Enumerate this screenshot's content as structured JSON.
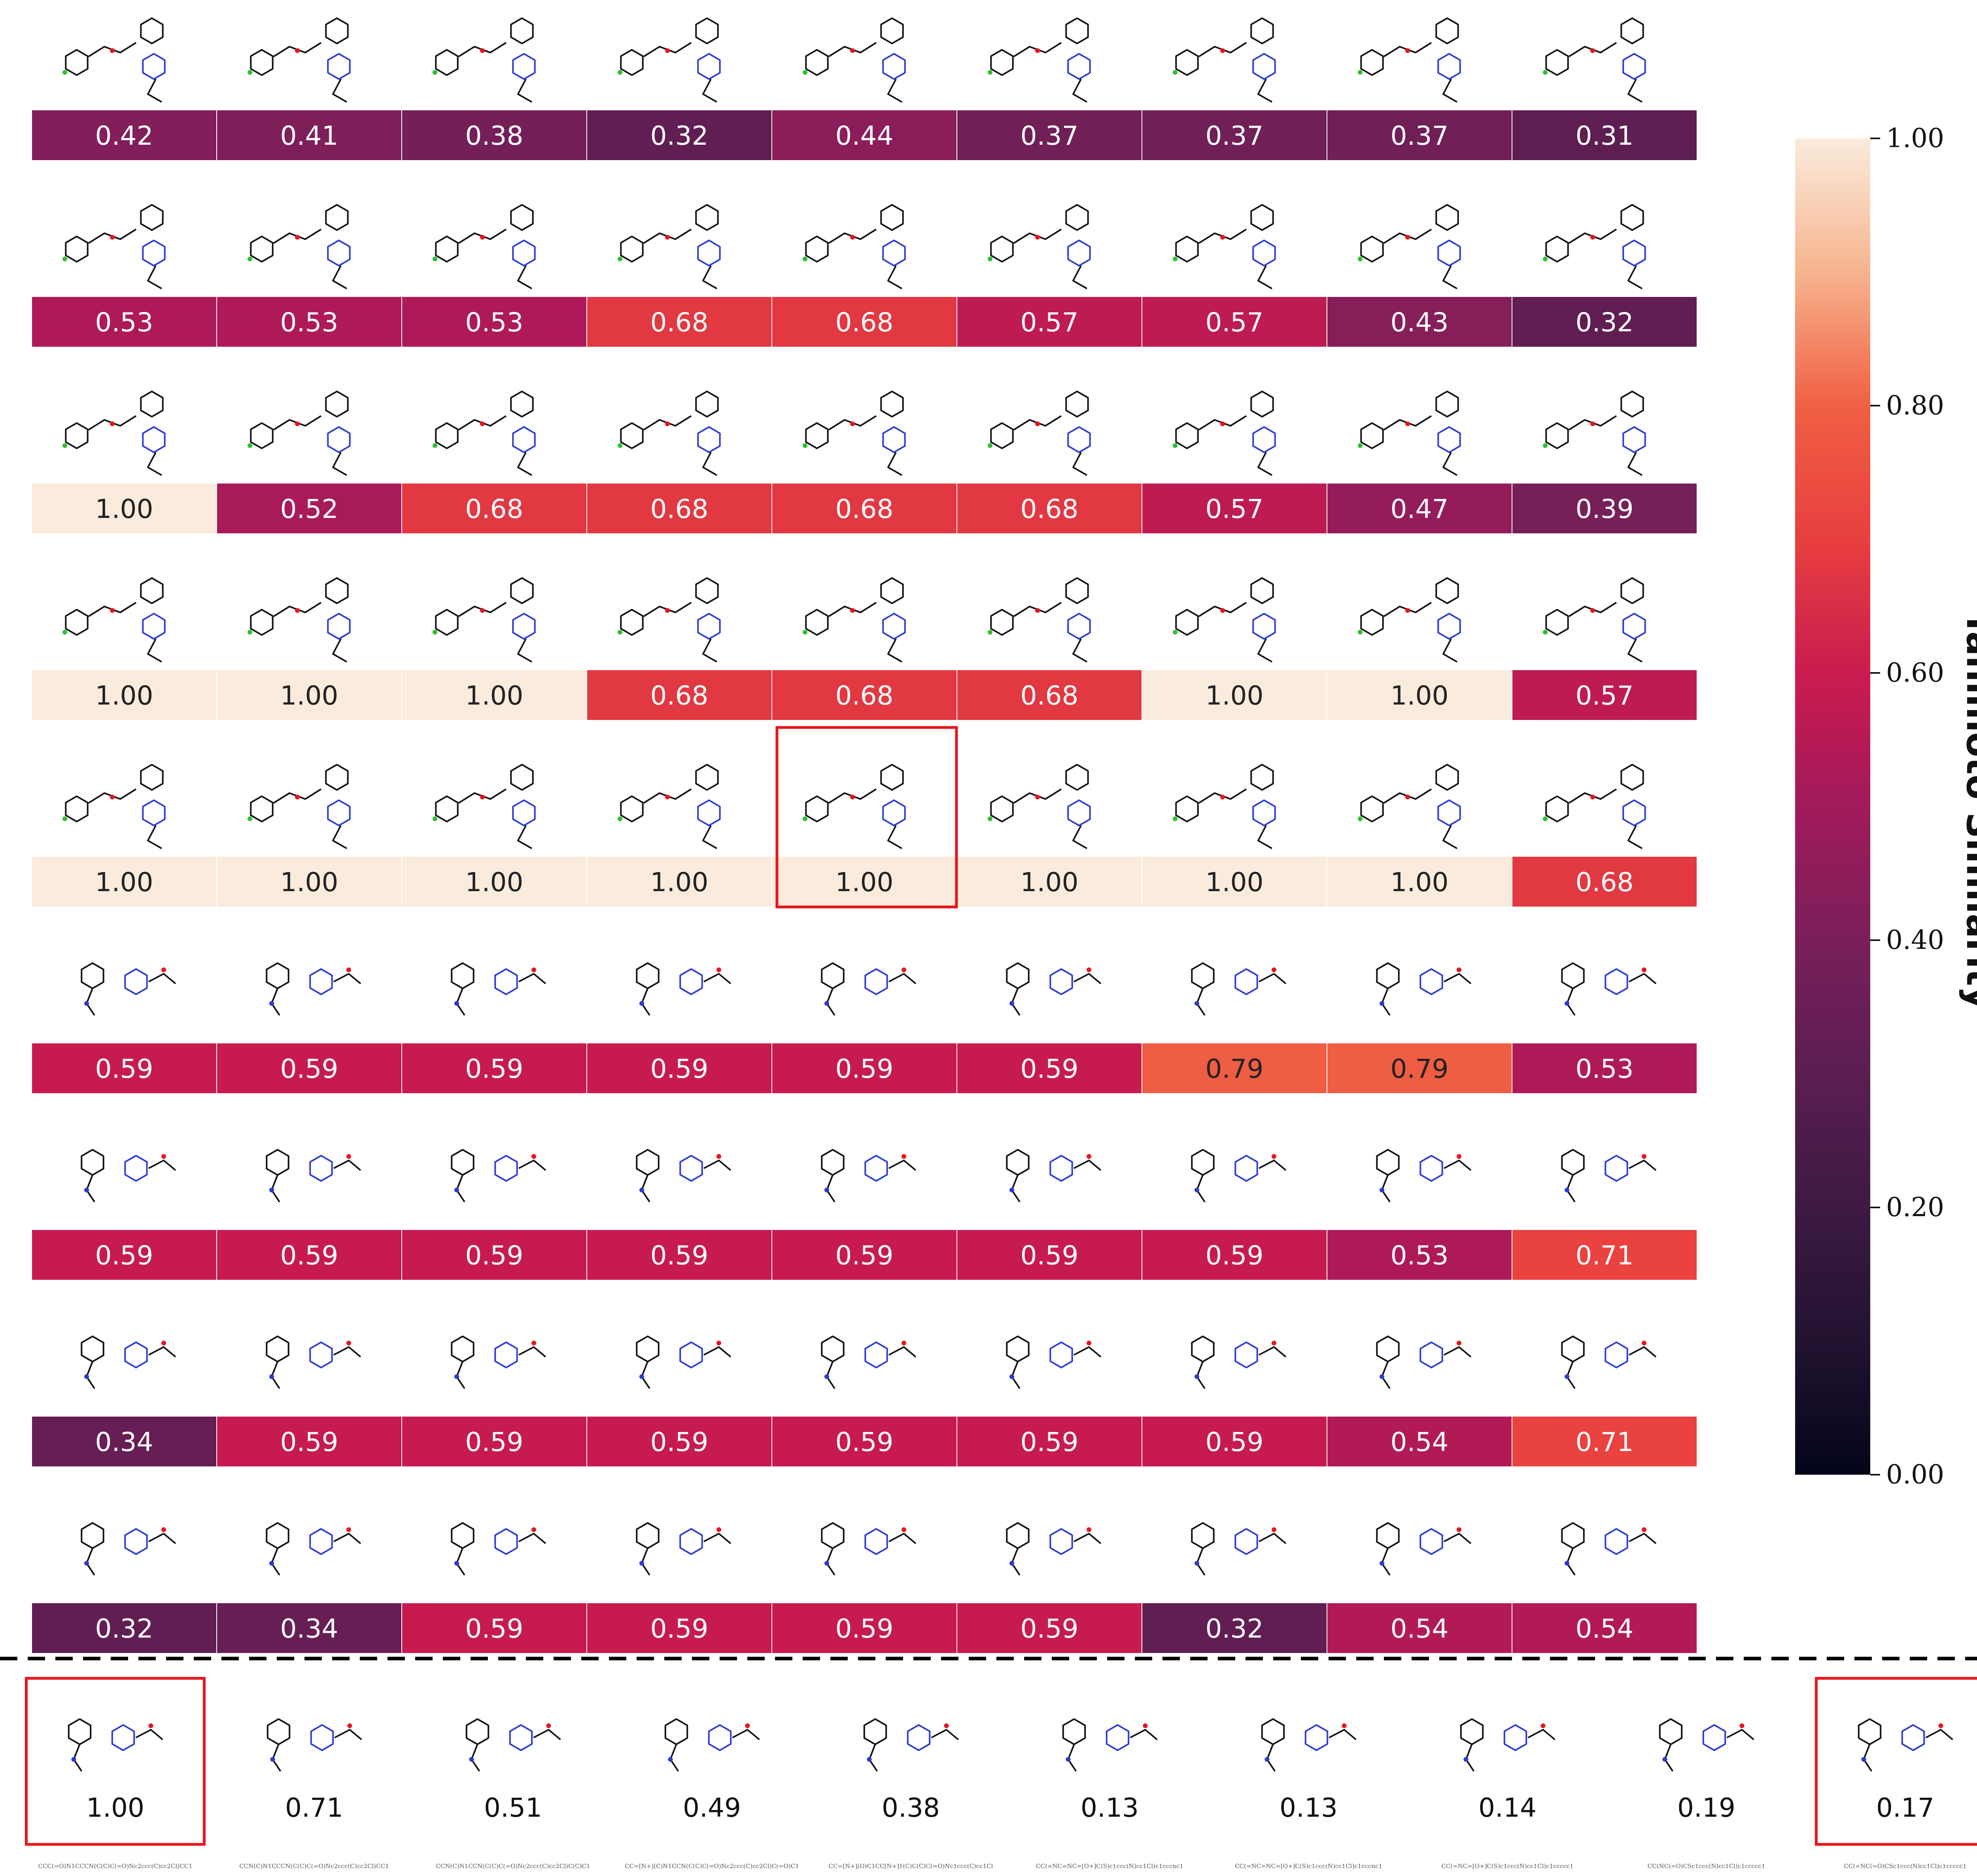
{
  "chart_data": {
    "type": "heatmap",
    "rows": 9,
    "columns": 9,
    "values": [
      [
        0.42,
        0.41,
        0.38,
        0.32,
        0.44,
        0.37,
        0.37,
        0.37,
        0.31
      ],
      [
        0.53,
        0.53,
        0.53,
        0.68,
        0.68,
        0.57,
        0.57,
        0.43,
        0.32
      ],
      [
        1.0,
        0.52,
        0.68,
        0.68,
        0.68,
        0.68,
        0.57,
        0.47,
        0.39
      ],
      [
        1.0,
        1.0,
        1.0,
        0.68,
        0.68,
        0.68,
        1.0,
        1.0,
        0.57
      ],
      [
        1.0,
        1.0,
        1.0,
        1.0,
        1.0,
        1.0,
        1.0,
        1.0,
        0.68
      ],
      [
        0.59,
        0.59,
        0.59,
        0.59,
        0.59,
        0.59,
        0.79,
        0.79,
        0.53
      ],
      [
        0.59,
        0.59,
        0.59,
        0.59,
        0.59,
        0.59,
        0.59,
        0.53,
        0.71
      ],
      [
        0.34,
        0.59,
        0.59,
        0.59,
        0.59,
        0.59,
        0.59,
        0.54,
        0.71
      ],
      [
        0.32,
        0.34,
        0.59,
        0.59,
        0.59,
        0.59,
        0.32,
        0.54,
        0.54
      ]
    ],
    "value_labels": [
      [
        "0.42",
        "0.41",
        "0.38",
        "0.32",
        "0.44",
        "0.37",
        "0.37",
        "0.37",
        "0.31"
      ],
      [
        "0.53",
        "0.53",
        "0.53",
        "0.68",
        "0.68",
        "0.57",
        "0.57",
        "0.43",
        "0.32"
      ],
      [
        "1.00",
        "0.52",
        "0.68",
        "0.68",
        "0.68",
        "0.68",
        "0.57",
        "0.47",
        "0.39"
      ],
      [
        "1.00",
        "1.00",
        "1.00",
        "0.68",
        "0.68",
        "0.68",
        "1.00",
        "1.00",
        "0.57"
      ],
      [
        "1.00",
        "1.00",
        "1.00",
        "1.00",
        "1.00",
        "1.00",
        "1.00",
        "1.00",
        "0.68"
      ],
      [
        "0.59",
        "0.59",
        "0.59",
        "0.59",
        "0.59",
        "0.59",
        "0.79",
        "0.79",
        "0.53"
      ],
      [
        "0.59",
        "0.59",
        "0.59",
        "0.59",
        "0.59",
        "0.59",
        "0.59",
        "0.53",
        "0.71"
      ],
      [
        "0.34",
        "0.59",
        "0.59",
        "0.59",
        "0.59",
        "0.59",
        "0.59",
        "0.54",
        "0.71"
      ],
      [
        "0.32",
        "0.34",
        "0.59",
        "0.59",
        "0.59",
        "0.59",
        "0.32",
        "0.54",
        "0.54"
      ]
    ],
    "highlighted_cell": {
      "row": 4,
      "column": 4
    },
    "colorbar": {
      "label": "Tanimoto Similarity",
      "range": [
        0.0,
        1.0
      ],
      "ticks": [
        "1.00",
        "0.80",
        "0.60",
        "0.40",
        "0.20",
        "0.00"
      ],
      "colormap": "rocket"
    },
    "sequence": {
      "values": [
        "1.00",
        "0.71",
        "0.51",
        "0.49",
        "0.38",
        "0.13",
        "0.13",
        "0.14",
        "0.19",
        "0.17"
      ],
      "highlighted": [
        0,
        9
      ],
      "smiles": [
        "CCC(=O)N1CCCN(C(C)C(=O)Nc2ccc(C)cc2Cl)CC1",
        "CCN(C)N1CCCN(C(C)C(=O)Nc2ccc(C)cc2Cl)CC1",
        "CCN(C)N1CCN(C(C)C(=O)Nc2ccc(C)cc2Cl)C(C)C1",
        "CC=[N+](C)N1CCN(C(C)C(=O)Nc2ccc(C)cc2Cl)C(=O)C1",
        "CC=[N+](O)C1CC[N+]1(C)C(C)C(=O)Nc1ccc(C)cc1Cl",
        "CC(=NC=NC=[O+]C(S)c1ccc(N)cc1Cl)c1cccnc1",
        "CC(=NC=NC=[O+]C(S)c1ccc(N)cc1Cl)c1cccnc1",
        "CC(=NC=[O+]C(S)c1ccc(N)cc1Cl)c1ccccc1",
        "CC(NC(=O)CSc1ccc(N)cc1Cl)c1ccccc1",
        "CC(=NC(=O)CSc1ccc(N)cc1Cl)c1ccccc1"
      ]
    }
  },
  "colors": {
    "highlight_border": "#e8151c",
    "grid_line": "#ffffff",
    "divider": "#000000"
  }
}
